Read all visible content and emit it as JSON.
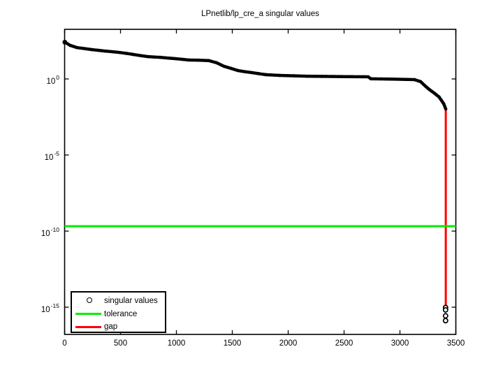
{
  "figure": {
    "title": "LPnetlib/lp_cre_a singular values"
  },
  "legend": {
    "items": [
      {
        "label": "singular values",
        "sample": "circle-marker",
        "color": "#000000"
      },
      {
        "label": "tolerance",
        "sample": "line",
        "color": "#00ee00"
      },
      {
        "label": "gap",
        "sample": "line",
        "color": "#ff0000"
      }
    ]
  },
  "chart_data": {
    "type": "scatter",
    "title": "LPnetlib/lp_cre_a singular values",
    "xlabel": "",
    "ylabel": "",
    "grid": false,
    "legend_position": "bottom-left",
    "xlim": [
      0,
      3500
    ],
    "ylim_exponents": [
      -16.79,
      3.26
    ],
    "x_ticks": [
      0,
      500,
      1000,
      1500,
      2000,
      2500,
      3000,
      3500
    ],
    "y_tick_exponents": [
      0,
      -5,
      -10,
      -15
    ],
    "series": [
      {
        "name": "singular values",
        "type": "scatter-curve",
        "color": "#000000",
        "points": [
          [
            2,
            260
          ],
          [
            50,
            160
          ],
          [
            110,
            115
          ],
          [
            180,
            98
          ],
          [
            240,
            85
          ],
          [
            300,
            76
          ],
          [
            360,
            68
          ],
          [
            430,
            61
          ],
          [
            490,
            55
          ],
          [
            550,
            48
          ],
          [
            610,
            41
          ],
          [
            680,
            34
          ],
          [
            740,
            29.5
          ],
          [
            800,
            27.5
          ],
          [
            860,
            26
          ],
          [
            925,
            23.5
          ],
          [
            990,
            21.5
          ],
          [
            1050,
            19.5
          ],
          [
            1110,
            17.5
          ],
          [
            1200,
            17
          ],
          [
            1290,
            16
          ],
          [
            1360,
            11.5
          ],
          [
            1425,
            6.8
          ],
          [
            1490,
            4.9
          ],
          [
            1550,
            3.55
          ],
          [
            1610,
            3.0
          ],
          [
            1675,
            2.6
          ],
          [
            1740,
            2.2
          ],
          [
            1800,
            1.9
          ],
          [
            1925,
            1.7
          ],
          [
            2050,
            1.6
          ],
          [
            2175,
            1.5
          ],
          [
            2300,
            1.47
          ],
          [
            2450,
            1.43
          ],
          [
            2580,
            1.4
          ],
          [
            2715,
            1.38
          ],
          [
            2740,
            1.02
          ],
          [
            2900,
            0.98
          ],
          [
            3050,
            0.93
          ],
          [
            3130,
            0.9
          ],
          [
            3185,
            0.66
          ],
          [
            3225,
            0.35
          ],
          [
            3263,
            0.2
          ],
          [
            3305,
            0.12
          ],
          [
            3350,
            0.065
          ],
          [
            3370,
            0.04
          ],
          [
            3392,
            0.023
          ],
          [
            3410,
            0.0105
          ]
        ]
      },
      {
        "name": "tolerance",
        "type": "hline",
        "color": "#00ee00",
        "value": 2.1e-10
      },
      {
        "name": "gap",
        "type": "vline",
        "color": "#ff0000",
        "x": 3410,
        "from": 0.0096,
        "to": 1.25e-15
      }
    ],
    "outliers": {
      "name": "trailing singular values",
      "x": 3408,
      "values": [
        9.5e-16,
        6.6e-16,
        2.7e-16,
        1.3e-16
      ]
    }
  }
}
